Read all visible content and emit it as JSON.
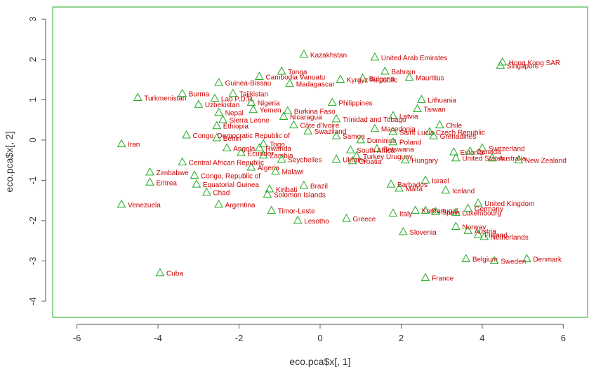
{
  "colors": {
    "frame": "#22aa22",
    "marker": "#22aa22",
    "label": "#cc0000",
    "axis": "#555555",
    "text": "#333333"
  },
  "chart_data": {
    "type": "scatter",
    "xlabel": "eco.pca$x[, 1]",
    "ylabel": "eco.pca$x[, 2]",
    "xlim": [
      -6.6,
      6.6
    ],
    "ylim": [
      -4.4,
      3.3
    ],
    "xticks": [
      -6,
      -4,
      -2,
      0,
      2,
      4,
      6
    ],
    "yticks": [
      -4,
      -3,
      -2,
      -1,
      0,
      1,
      2,
      3
    ],
    "points": [
      {
        "label": "Kazakhstan",
        "x": -0.4,
        "y": 2.12
      },
      {
        "label": "United Arab Emirates",
        "x": 1.35,
        "y": 2.05
      },
      {
        "label": "Hong Kong SAR",
        "x": 4.5,
        "y": 1.93
      },
      {
        "label": "Singapore",
        "x": 4.45,
        "y": 1.85
      },
      {
        "label": "Tonga",
        "x": -0.95,
        "y": 1.7
      },
      {
        "label": "Bahrain",
        "x": 1.6,
        "y": 1.7
      },
      {
        "label": "Cambodia Vanuatu",
        "x": -1.5,
        "y": 1.57
      },
      {
        "label": "Bulgaria",
        "x": 1.05,
        "y": 1.53
      },
      {
        "label": "Mauritius",
        "x": 2.2,
        "y": 1.55
      },
      {
        "label": "Kyrgyz Republic",
        "x": 0.5,
        "y": 1.5
      },
      {
        "label": "Guinea-Bissau",
        "x": -2.5,
        "y": 1.42
      },
      {
        "label": "Madagascar",
        "x": -0.75,
        "y": 1.4
      },
      {
        "label": "Turkmenistan",
        "x": -4.5,
        "y": 1.05
      },
      {
        "label": "Burma",
        "x": -3.4,
        "y": 1.15
      },
      {
        "label": "Tajikistan",
        "x": -2.15,
        "y": 1.15
      },
      {
        "label": "Lithuania",
        "x": 2.5,
        "y": 1.0
      },
      {
        "label": "Lao P.D.R.",
        "x": -2.6,
        "y": 1.03
      },
      {
        "label": "Nigeria",
        "x": -1.7,
        "y": 0.93
      },
      {
        "label": "Uzbekistan",
        "x": -3.0,
        "y": 0.88
      },
      {
        "label": "Philippines",
        "x": 0.3,
        "y": 0.93
      },
      {
        "label": "Taiwan",
        "x": 2.4,
        "y": 0.77
      },
      {
        "label": "Nepal",
        "x": -2.5,
        "y": 0.68
      },
      {
        "label": "Yemen",
        "x": -1.65,
        "y": 0.75
      },
      {
        "label": "Burkina Faso",
        "x": -0.8,
        "y": 0.72
      },
      {
        "label": "Latvia",
        "x": 1.8,
        "y": 0.6
      },
      {
        "label": "Sierra Leone",
        "x": -2.4,
        "y": 0.5
      },
      {
        "label": "Nicaragua",
        "x": -0.9,
        "y": 0.58
      },
      {
        "label": "Trinidad and Tobago",
        "x": 0.4,
        "y": 0.52
      },
      {
        "label": "Ethiopia",
        "x": -2.55,
        "y": 0.35
      },
      {
        "label": "Côte d'Ivoire",
        "x": -0.65,
        "y": 0.37
      },
      {
        "label": "Chile",
        "x": 2.95,
        "y": 0.37
      },
      {
        "label": "Macedonia",
        "x": 1.35,
        "y": 0.28
      },
      {
        "label": "Swaziland",
        "x": -0.3,
        "y": 0.22
      },
      {
        "label": "Saint Lucia",
        "x": 1.8,
        "y": 0.2
      },
      {
        "label": "Czech Republic",
        "x": 2.7,
        "y": 0.2
      },
      {
        "label": "Congo, Democratic Republic of",
        "x": -3.3,
        "y": 0.12
      },
      {
        "label": "Benin",
        "x": -2.55,
        "y": 0.05
      },
      {
        "label": "Samoa",
        "x": 0.4,
        "y": 0.1
      },
      {
        "label": "Grenadines",
        "x": 2.8,
        "y": 0.1
      },
      {
        "label": "Dominica",
        "x": 1.0,
        "y": 0.0
      },
      {
        "label": "Poland",
        "x": 1.8,
        "y": -0.05
      },
      {
        "label": "Iran",
        "x": -4.9,
        "y": -0.1
      },
      {
        "label": "Togo",
        "x": -1.4,
        "y": -0.1
      },
      {
        "label": "Switzerland",
        "x": 4.0,
        "y": -0.2
      },
      {
        "label": "Angola",
        "x": -2.3,
        "y": -0.2
      },
      {
        "label": "Rwanda",
        "x": -1.5,
        "y": -0.2
      },
      {
        "label": "Botswana",
        "x": 1.4,
        "y": -0.22
      },
      {
        "label": "Estonia",
        "x": 3.3,
        "y": -0.3
      },
      {
        "label": "Canada",
        "x": 3.7,
        "y": -0.28
      },
      {
        "label": "South Africa",
        "x": 0.75,
        "y": -0.25
      },
      {
        "label": "Ecuador",
        "x": -1.95,
        "y": -0.32
      },
      {
        "label": "Zambia",
        "x": -1.4,
        "y": -0.38
      },
      {
        "label": "Seychelles",
        "x": -0.95,
        "y": -0.48
      },
      {
        "label": "Turkey Uruguay",
        "x": 0.9,
        "y": -0.4
      },
      {
        "label": "Ukraine",
        "x": 0.4,
        "y": -0.48
      },
      {
        "label": "Croatia",
        "x": 0.8,
        "y": -0.52
      },
      {
        "label": "Hungary",
        "x": 2.1,
        "y": -0.5
      },
      {
        "label": "United States",
        "x": 3.35,
        "y": -0.45
      },
      {
        "label": "Australia",
        "x": 4.25,
        "y": -0.45
      },
      {
        "label": "New Zealand",
        "x": 4.9,
        "y": -0.5
      },
      {
        "label": "Central African Republic",
        "x": -3.4,
        "y": -0.55
      },
      {
        "label": "Algeria",
        "x": -1.7,
        "y": -0.68
      },
      {
        "label": "Malawi",
        "x": -1.1,
        "y": -0.78
      },
      {
        "label": "Zimbabwe",
        "x": -4.2,
        "y": -0.8
      },
      {
        "label": "Congo, Republic of",
        "x": -3.1,
        "y": -0.88
      },
      {
        "label": "Israel",
        "x": 2.6,
        "y": -1.0
      },
      {
        "label": "Eritrea",
        "x": -4.2,
        "y": -1.05
      },
      {
        "label": "Equatorial Guinea",
        "x": -3.05,
        "y": -1.1
      },
      {
        "label": "Brazil",
        "x": -0.4,
        "y": -1.13
      },
      {
        "label": "Barbados",
        "x": 1.75,
        "y": -1.1
      },
      {
        "label": "Malta",
        "x": 1.95,
        "y": -1.2
      },
      {
        "label": "Iceland",
        "x": 3.1,
        "y": -1.25
      },
      {
        "label": "Kiribati",
        "x": -1.25,
        "y": -1.22
      },
      {
        "label": "Chad",
        "x": -2.8,
        "y": -1.3
      },
      {
        "label": "Solomon Islands",
        "x": -1.3,
        "y": -1.35
      },
      {
        "label": "United Kingdom",
        "x": 3.9,
        "y": -1.57
      },
      {
        "label": "Venezuela",
        "x": -4.9,
        "y": -1.6
      },
      {
        "label": "Argentina",
        "x": -2.5,
        "y": -1.6
      },
      {
        "label": "Germany",
        "x": 3.65,
        "y": -1.7
      },
      {
        "label": "Timor-Leste",
        "x": -1.2,
        "y": -1.75
      },
      {
        "label": "Korea",
        "x": 2.35,
        "y": -1.75
      },
      {
        "label": "Portugal",
        "x": 2.6,
        "y": -1.75
      },
      {
        "label": "Spain",
        "x": 2.85,
        "y": -1.78
      },
      {
        "label": "Italy",
        "x": 1.8,
        "y": -1.82
      },
      {
        "label": "Luxembourg",
        "x": 3.35,
        "y": -1.8
      },
      {
        "label": "Greece",
        "x": 0.65,
        "y": -1.95
      },
      {
        "label": "Lesotho",
        "x": -0.55,
        "y": -2.0
      },
      {
        "label": "Norway",
        "x": 3.35,
        "y": -2.15
      },
      {
        "label": "Austria",
        "x": 3.65,
        "y": -2.25
      },
      {
        "label": "Slovenia",
        "x": 2.05,
        "y": -2.28
      },
      {
        "label": "Finland",
        "x": 3.9,
        "y": -2.35
      },
      {
        "label": "Netherlands",
        "x": 4.05,
        "y": -2.4
      },
      {
        "label": "Belgium",
        "x": 3.6,
        "y": -2.95
      },
      {
        "label": "Denmark",
        "x": 5.1,
        "y": -2.95
      },
      {
        "label": "Sweden",
        "x": 4.3,
        "y": -3.0
      },
      {
        "label": "Cuba",
        "x": -3.95,
        "y": -3.3
      },
      {
        "label": "France",
        "x": 2.6,
        "y": -3.42
      }
    ]
  }
}
